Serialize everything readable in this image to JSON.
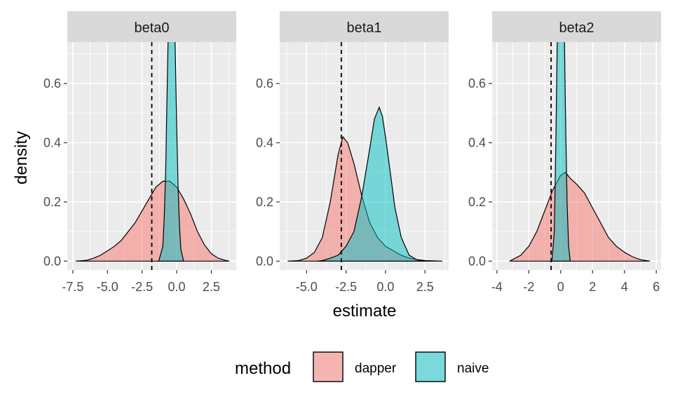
{
  "chart_data": {
    "type": "area",
    "subtype": "faceted density",
    "xlabel": "estimate",
    "ylabel": "density",
    "legend": {
      "title": "method",
      "position": "bottom",
      "entries": [
        {
          "key": "dapper",
          "label": "dapper",
          "color": "#F8766D"
        },
        {
          "key": "naive",
          "label": "naive",
          "color": "#00BFC4"
        }
      ]
    },
    "ylim": [
      -0.03,
      0.74
    ],
    "yticks": [
      0.0,
      0.2,
      0.4,
      0.6
    ],
    "ytick_labels": [
      "0.0",
      "0.2",
      "0.4",
      "0.6"
    ],
    "grid": true,
    "facets": [
      {
        "title": "beta0",
        "xlim": [
          -7.9,
          4.3
        ],
        "xticks": [
          -7.5,
          -5.0,
          -2.5,
          0.0,
          2.5
        ],
        "xtick_labels": [
          "-7.5",
          "-5.0",
          "-2.5",
          "0.0",
          "2.5"
        ],
        "reference_line": -1.8,
        "series": [
          {
            "key": "dapper",
            "x": [
              -7.3,
              -6.5,
              -6.0,
              -5.5,
              -5.0,
              -4.5,
              -4.0,
              -3.5,
              -3.0,
              -2.5,
              -2.0,
              -1.5,
              -1.0,
              -0.5,
              0.0,
              0.5,
              1.0,
              1.5,
              2.0,
              2.5,
              3.0,
              3.5,
              3.8
            ],
            "y": [
              0.0,
              0.003,
              0.01,
              0.02,
              0.035,
              0.05,
              0.07,
              0.1,
              0.13,
              0.17,
              0.21,
              0.25,
              0.27,
              0.27,
              0.25,
              0.21,
              0.16,
              0.1,
              0.055,
              0.025,
              0.01,
              0.003,
              0.0
            ]
          },
          {
            "key": "naive",
            "x": [
              -1.3,
              -1.0,
              -0.9,
              -0.8,
              -0.7,
              -0.6,
              -0.5,
              -0.4,
              -0.3,
              -0.2,
              -0.1,
              0.0,
              0.1,
              0.2,
              0.3,
              0.5
            ],
            "y": [
              0.0,
              0.05,
              0.15,
              0.3,
              0.55,
              0.8,
              1.0,
              1.1,
              1.05,
              0.9,
              0.7,
              0.45,
              0.25,
              0.12,
              0.04,
              0.0
            ]
          }
        ]
      },
      {
        "title": "beta1",
        "xlim": [
          -6.7,
          4.0
        ],
        "xticks": [
          -5.0,
          -2.5,
          0.0,
          2.5
        ],
        "xtick_labels": [
          "-5.0",
          "-2.5",
          "0.0",
          "2.5"
        ],
        "reference_line": -2.8,
        "series": [
          {
            "key": "dapper",
            "x": [
              -6.2,
              -5.5,
              -5.0,
              -4.5,
              -4.0,
              -3.5,
              -3.0,
              -2.7,
              -2.4,
              -2.0,
              -1.5,
              -1.0,
              -0.5,
              0.0,
              0.5,
              1.0,
              1.5,
              2.0,
              2.5,
              3.0,
              3.6
            ],
            "y": [
              0.0,
              0.002,
              0.01,
              0.03,
              0.08,
              0.2,
              0.36,
              0.42,
              0.4,
              0.33,
              0.22,
              0.13,
              0.08,
              0.05,
              0.035,
              0.02,
              0.01,
              0.005,
              0.002,
              0.001,
              0.0
            ]
          },
          {
            "key": "naive",
            "x": [
              -4.3,
              -4.0,
              -3.5,
              -3.0,
              -2.5,
              -2.0,
              -1.5,
              -1.0,
              -0.7,
              -0.4,
              -0.2,
              0.0,
              0.3,
              0.6,
              1.0,
              1.5,
              2.0,
              2.5
            ],
            "y": [
              0.0,
              0.002,
              0.01,
              0.02,
              0.05,
              0.1,
              0.22,
              0.38,
              0.48,
              0.52,
              0.49,
              0.42,
              0.3,
              0.18,
              0.08,
              0.02,
              0.004,
              0.0
            ]
          }
        ]
      },
      {
        "title": "beta2",
        "xlim": [
          -4.3,
          6.3
        ],
        "xticks": [
          -4,
          -2,
          0,
          2,
          4,
          6
        ],
        "xtick_labels": [
          "-4",
          "-2",
          "0",
          "2",
          "4",
          "6"
        ],
        "reference_line": -0.6,
        "series": [
          {
            "key": "dapper",
            "x": [
              -3.2,
              -2.5,
              -2.0,
              -1.5,
              -1.0,
              -0.5,
              0.0,
              0.3,
              0.6,
              1.0,
              1.5,
              2.0,
              2.5,
              3.0,
              3.5,
              4.0,
              4.5,
              5.0,
              5.6
            ],
            "y": [
              0.0,
              0.02,
              0.05,
              0.1,
              0.17,
              0.24,
              0.29,
              0.3,
              0.28,
              0.26,
              0.23,
              0.18,
              0.13,
              0.08,
              0.05,
              0.03,
              0.015,
              0.005,
              0.0
            ]
          },
          {
            "key": "naive",
            "x": [
              -0.55,
              -0.4,
              -0.3,
              -0.2,
              -0.1,
              0.0,
              0.1,
              0.2,
              0.3,
              0.4,
              0.5,
              0.6
            ],
            "y": [
              0.0,
              0.1,
              0.4,
              0.8,
              1.1,
              1.3,
              1.2,
              0.9,
              0.5,
              0.2,
              0.05,
              0.0
            ]
          }
        ]
      }
    ]
  }
}
